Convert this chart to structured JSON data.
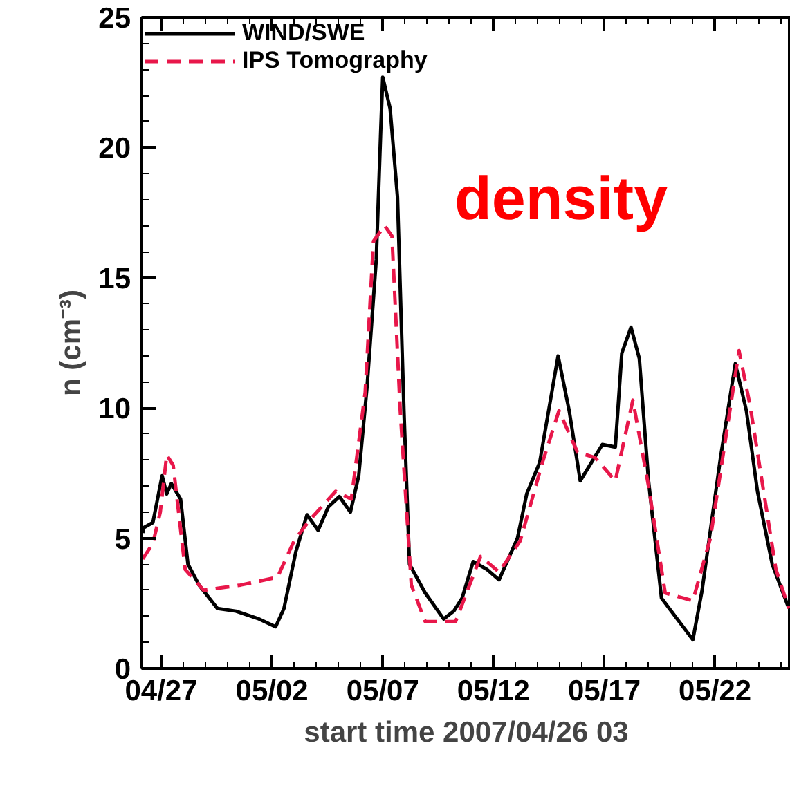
{
  "chart_data": {
    "type": "line",
    "xlabel": "start time 2007/04/26 03",
    "ylabel": "n (cm⁻³)",
    "annotations": [
      "density"
    ],
    "xlim": [
      "2007-04-26T03:00",
      "2007-05-25T10:00"
    ],
    "ylim": [
      0,
      25
    ],
    "xticks": [
      {
        "value": "2007-04-27",
        "label": "04/27"
      },
      {
        "value": "2007-05-02",
        "label": "05/02"
      },
      {
        "value": "2007-05-07",
        "label": "05/07"
      },
      {
        "value": "2007-05-12",
        "label": "05/12"
      },
      {
        "value": "2007-05-17",
        "label": "05/17"
      },
      {
        "value": "2007-05-22",
        "label": "05/22"
      }
    ],
    "yticks": [
      0,
      5,
      10,
      15,
      20,
      25
    ],
    "grid": false,
    "legend": "top left",
    "series": [
      {
        "name": "WIND/SWE",
        "color": "#000000",
        "line_style": "solid",
        "x": [
          "2007-04-26T04:00",
          "2007-04-26T05:00",
          "2007-04-26T15:00",
          "2007-04-27T01:00",
          "2007-04-27T06:00",
          "2007-04-27T11:00",
          "2007-04-27T21:00",
          "2007-04-28T05:00",
          "2007-04-28T17:00",
          "2007-04-29T13:00",
          "2007-04-30T09:00",
          "2007-05-01T10:00",
          "2007-05-02T04:00",
          "2007-05-02T13:00",
          "2007-05-03T02:00",
          "2007-05-03T14:00",
          "2007-05-04T02:00",
          "2007-05-04T13:00",
          "2007-05-05T01:00",
          "2007-05-05T13:00",
          "2007-05-05T22:00",
          "2007-05-06T07:00",
          "2007-05-06T17:00",
          "2007-05-06T22:00",
          "2007-05-07T00:00",
          "2007-05-07T08:00",
          "2007-05-07T16:00",
          "2007-05-07T23:00",
          "2007-05-08T05:00",
          "2007-05-08T22:00",
          "2007-05-09T18:00",
          "2007-05-10T05:00",
          "2007-05-10T14:00",
          "2007-05-11T02:00",
          "2007-05-11T17:00",
          "2007-05-12T06:00",
          "2007-05-13T02:00",
          "2007-05-13T12:00",
          "2007-05-14T02:00",
          "2007-05-14T22:00",
          "2007-05-15T10:00",
          "2007-05-15T22:00",
          "2007-05-16T10:00",
          "2007-05-16T22:00",
          "2007-05-17T12:00",
          "2007-05-17T19:00",
          "2007-05-18T05:00",
          "2007-05-18T14:00",
          "2007-05-19T00:00",
          "2007-05-19T14:00",
          "2007-05-21T00:00",
          "2007-05-21T10:00",
          "2007-05-22T06:00",
          "2007-05-22T22:00",
          "2007-05-23T10:00",
          "2007-05-23T22:00",
          "2007-05-24T14:00",
          "2007-05-25T07:00"
        ],
        "values": [
          5.2,
          5.4,
          5.6,
          7.4,
          6.7,
          7.1,
          6.5,
          4.0,
          3.2,
          2.3,
          2.2,
          1.9,
          1.6,
          2.3,
          4.5,
          5.9,
          5.3,
          6.2,
          6.6,
          6.0,
          7.4,
          10.8,
          15.7,
          20.8,
          22.7,
          21.5,
          18.1,
          9.9,
          4.0,
          2.9,
          1.9,
          2.2,
          2.7,
          4.1,
          3.8,
          3.4,
          5.0,
          6.7,
          7.9,
          12.0,
          9.9,
          7.2,
          7.9,
          8.6,
          8.5,
          12.1,
          13.1,
          11.9,
          7.2,
          2.7,
          1.1,
          3.0,
          8.1,
          11.7,
          9.9,
          6.8,
          4.0,
          2.4
        ]
      },
      {
        "name": "IPS Tomography",
        "color": "#e8174a",
        "line_style": "dashed",
        "x": [
          "2007-04-26T04:00",
          "2007-04-26T15:00",
          "2007-04-26T23:00",
          "2007-04-27T06:00",
          "2007-04-27T13:00",
          "2007-04-28T02:00",
          "2007-04-28T22:00",
          "2007-04-30T14:00",
          "2007-05-02T06:00",
          "2007-05-03T00:00",
          "2007-05-03T17:00",
          "2007-05-04T21:00",
          "2007-05-05T14:00",
          "2007-05-06T05:00",
          "2007-05-06T14:00",
          "2007-05-07T02:00",
          "2007-05-07T10:00",
          "2007-05-07T19:00",
          "2007-05-08T07:00",
          "2007-05-08T22:00",
          "2007-05-10T07:00",
          "2007-05-11T10:00",
          "2007-05-12T06:00",
          "2007-05-13T05:00",
          "2007-05-14T05:00",
          "2007-05-14T23:00",
          "2007-05-15T19:00",
          "2007-05-16T14:00",
          "2007-05-17T12:00",
          "2007-05-18T07:00",
          "2007-05-19T00:00",
          "2007-05-19T18:00",
          "2007-05-21T00:00",
          "2007-05-21T19:00",
          "2007-05-23T02:00",
          "2007-05-23T14:00",
          "2007-05-24T18:00",
          "2007-05-25T08:00"
        ],
        "values": [
          4.2,
          4.8,
          6.0,
          8.2,
          7.8,
          3.8,
          3.0,
          3.2,
          3.5,
          4.9,
          5.7,
          6.8,
          6.5,
          10.6,
          16.4,
          17.0,
          16.6,
          9.9,
          3.2,
          1.8,
          1.8,
          4.3,
          3.7,
          4.9,
          7.9,
          9.9,
          8.3,
          8.1,
          7.2,
          10.3,
          7.0,
          2.9,
          2.6,
          5.0,
          12.2,
          10.1,
          3.8,
          2.3
        ]
      }
    ]
  }
}
